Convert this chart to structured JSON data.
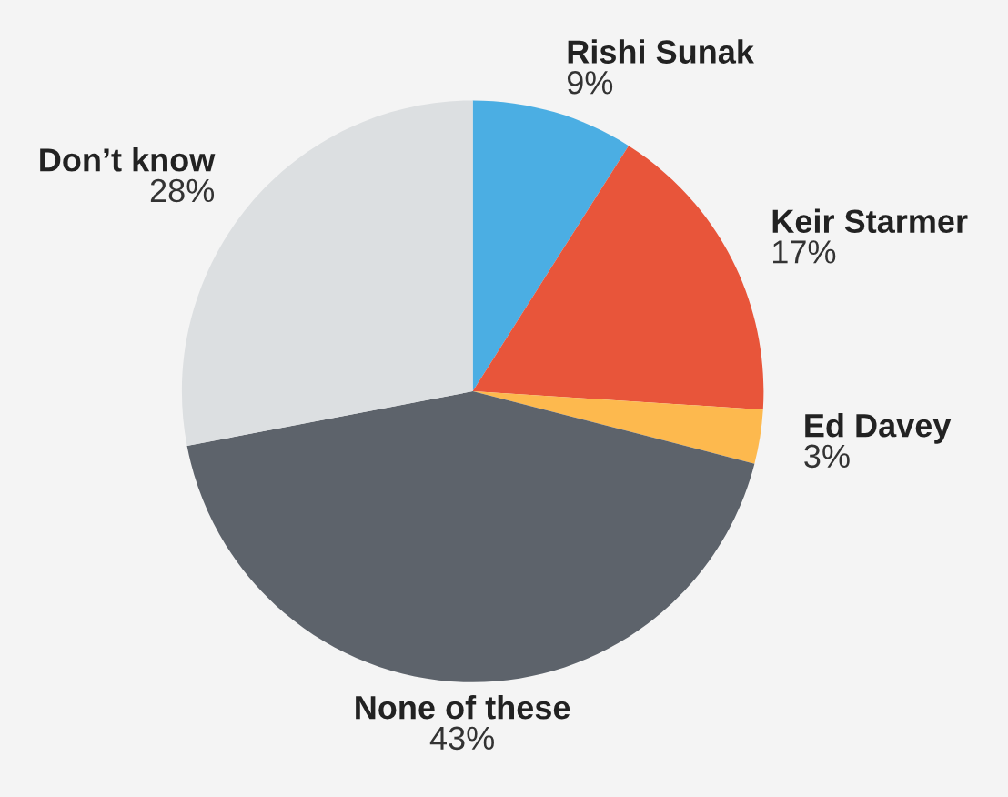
{
  "chart_data": {
    "type": "pie",
    "categories": [
      "Rishi Sunak",
      "Keir Starmer",
      "Ed Davey",
      "None of these",
      "Don’t know"
    ],
    "values": [
      9,
      17,
      3,
      43,
      28
    ],
    "colors": [
      "#4baee3",
      "#e8553a",
      "#fdb94e",
      "#5d636b",
      "#dcdfe1"
    ],
    "value_labels": [
      "9%",
      "17%",
      "3%",
      "43%",
      "28%"
    ]
  }
}
